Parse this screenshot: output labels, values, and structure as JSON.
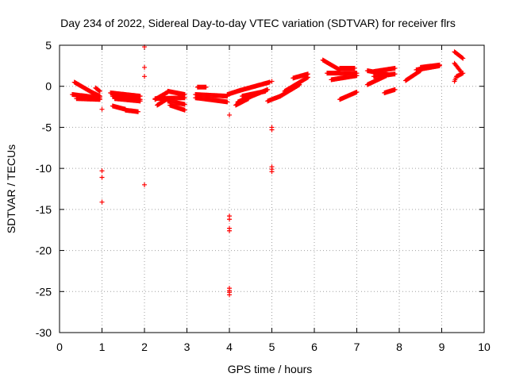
{
  "chart_data": {
    "type": "scatter",
    "title": "Day 234 of 2022, Sidereal Day-to-day VTEC variation (SDTVAR) for receiver flrs",
    "xlabel": "GPS time / hours",
    "ylabel": "SDTVAR / TECUs",
    "xlim": [
      0,
      10
    ],
    "ylim": [
      -30,
      5
    ],
    "xticks": [
      0,
      1,
      2,
      3,
      4,
      5,
      6,
      7,
      8,
      9,
      10
    ],
    "yticks": [
      -30,
      -25,
      -20,
      -15,
      -10,
      -5,
      0,
      5
    ],
    "grid": true,
    "marker": "plus",
    "color": "#ff0000",
    "segments": [
      {
        "x0": 0.35,
        "x1": 0.45,
        "y0": 0.5,
        "y1": 0.2
      },
      {
        "x0": 0.45,
        "x1": 0.75,
        "y0": 0.2,
        "y1": -0.7
      },
      {
        "x0": 0.75,
        "x1": 0.95,
        "y0": -0.7,
        "y1": -1.2
      },
      {
        "x0": 0.3,
        "x1": 0.95,
        "y0": -1.0,
        "y1": -1.4
      },
      {
        "x0": 0.4,
        "x1": 0.95,
        "y0": -1.5,
        "y1": -1.6
      },
      {
        "x0": 0.85,
        "x1": 0.95,
        "y0": -0.2,
        "y1": -0.6
      },
      {
        "x0": 1.2,
        "x1": 1.9,
        "y0": -0.8,
        "y1": -1.2
      },
      {
        "x0": 1.25,
        "x1": 1.9,
        "y0": -1.2,
        "y1": -1.6
      },
      {
        "x0": 1.3,
        "x1": 1.9,
        "y0": -1.5,
        "y1": -1.8
      },
      {
        "x0": 1.25,
        "x1": 1.55,
        "y0": -2.4,
        "y1": -2.8
      },
      {
        "x0": 1.55,
        "x1": 1.85,
        "y0": -2.9,
        "y1": -3.1
      },
      {
        "x0": 2.25,
        "x1": 2.55,
        "y0": -1.6,
        "y1": -0.7
      },
      {
        "x0": 2.25,
        "x1": 2.95,
        "y0": -1.5,
        "y1": -1.4
      },
      {
        "x0": 2.3,
        "x1": 2.55,
        "y0": -2.3,
        "y1": -1.5
      },
      {
        "x0": 2.55,
        "x1": 2.95,
        "y0": -0.6,
        "y1": -1.0
      },
      {
        "x0": 2.55,
        "x1": 2.95,
        "y0": -1.8,
        "y1": -2.2
      },
      {
        "x0": 2.6,
        "x1": 2.95,
        "y0": -2.3,
        "y1": -2.9
      },
      {
        "x0": 3.2,
        "x1": 3.95,
        "y0": -1.0,
        "y1": -1.2
      },
      {
        "x0": 3.2,
        "x1": 3.95,
        "y0": -1.4,
        "y1": -1.9
      },
      {
        "x0": 3.25,
        "x1": 3.45,
        "y0": -0.1,
        "y1": -0.1
      },
      {
        "x0": 3.95,
        "x1": 4.25,
        "y0": -1.0,
        "y1": -0.5
      },
      {
        "x0": 4.25,
        "x1": 4.95,
        "y0": -0.5,
        "y1": 0.5
      },
      {
        "x0": 4.2,
        "x1": 4.9,
        "y0": -1.9,
        "y1": -0.4
      },
      {
        "x0": 4.15,
        "x1": 4.45,
        "y0": -2.3,
        "y1": -1.5
      },
      {
        "x0": 4.3,
        "x1": 4.85,
        "y0": -1.2,
        "y1": -0.6
      },
      {
        "x0": 4.9,
        "x1": 5.2,
        "y0": -1.8,
        "y1": -1.2
      },
      {
        "x0": 5.2,
        "x1": 5.65,
        "y0": -1.2,
        "y1": 0.2
      },
      {
        "x0": 5.3,
        "x1": 5.85,
        "y0": -0.6,
        "y1": 1.1
      },
      {
        "x0": 5.5,
        "x1": 5.85,
        "y0": 1.0,
        "y1": 1.5
      },
      {
        "x0": 6.2,
        "x1": 6.6,
        "y0": 3.2,
        "y1": 2.0
      },
      {
        "x0": 6.3,
        "x1": 7.0,
        "y0": 1.6,
        "y1": 1.6
      },
      {
        "x0": 6.4,
        "x1": 7.0,
        "y0": 0.8,
        "y1": 1.3
      },
      {
        "x0": 6.6,
        "x1": 6.95,
        "y0": 2.2,
        "y1": 2.2
      },
      {
        "x0": 6.6,
        "x1": 7.0,
        "y0": -1.6,
        "y1": -0.7
      },
      {
        "x0": 7.25,
        "x1": 7.75,
        "y0": 1.9,
        "y1": 1.4
      },
      {
        "x0": 7.25,
        "x1": 7.7,
        "y0": 0.2,
        "y1": 1.3
      },
      {
        "x0": 7.4,
        "x1": 7.9,
        "y0": 1.8,
        "y1": 2.2
      },
      {
        "x0": 7.4,
        "x1": 7.9,
        "y0": 1.2,
        "y1": 1.5
      },
      {
        "x0": 7.65,
        "x1": 7.9,
        "y0": -0.8,
        "y1": -0.4
      },
      {
        "x0": 8.15,
        "x1": 8.5,
        "y0": 0.7,
        "y1": 1.9
      },
      {
        "x0": 8.4,
        "x1": 8.95,
        "y0": 2.0,
        "y1": 2.5
      },
      {
        "x0": 8.5,
        "x1": 8.95,
        "y0": 2.3,
        "y1": 2.6
      },
      {
        "x0": 9.3,
        "x1": 9.5,
        "y0": 4.2,
        "y1": 3.4
      },
      {
        "x0": 9.3,
        "x1": 9.45,
        "y0": 2.8,
        "y1": 1.8
      },
      {
        "x0": 9.35,
        "x1": 9.5,
        "y0": 1.2,
        "y1": 1.6
      },
      {
        "x0": 9.3,
        "x1": 9.35,
        "y0": 0.6,
        "y1": 1.2
      }
    ],
    "points": [
      [
        1.0,
        -2.8
      ],
      [
        1.0,
        -10.3
      ],
      [
        1.0,
        -11.1
      ],
      [
        1.0,
        -14.1
      ],
      [
        2.0,
        4.8
      ],
      [
        2.0,
        2.3
      ],
      [
        2.0,
        1.2
      ],
      [
        2.0,
        -12.0
      ],
      [
        4.0,
        -3.5
      ],
      [
        4.0,
        -15.8
      ],
      [
        4.0,
        -16.2
      ],
      [
        4.0,
        -17.3
      ],
      [
        4.0,
        -17.6
      ],
      [
        4.0,
        -24.6
      ],
      [
        4.0,
        -24.9
      ],
      [
        4.0,
        -25.1
      ],
      [
        4.0,
        -25.4
      ],
      [
        5.0,
        -5.0
      ],
      [
        5.0,
        -5.3
      ],
      [
        5.0,
        -9.8
      ],
      [
        5.0,
        -10.1
      ],
      [
        5.0,
        -10.4
      ],
      [
        5.0,
        0.6
      ]
    ]
  }
}
